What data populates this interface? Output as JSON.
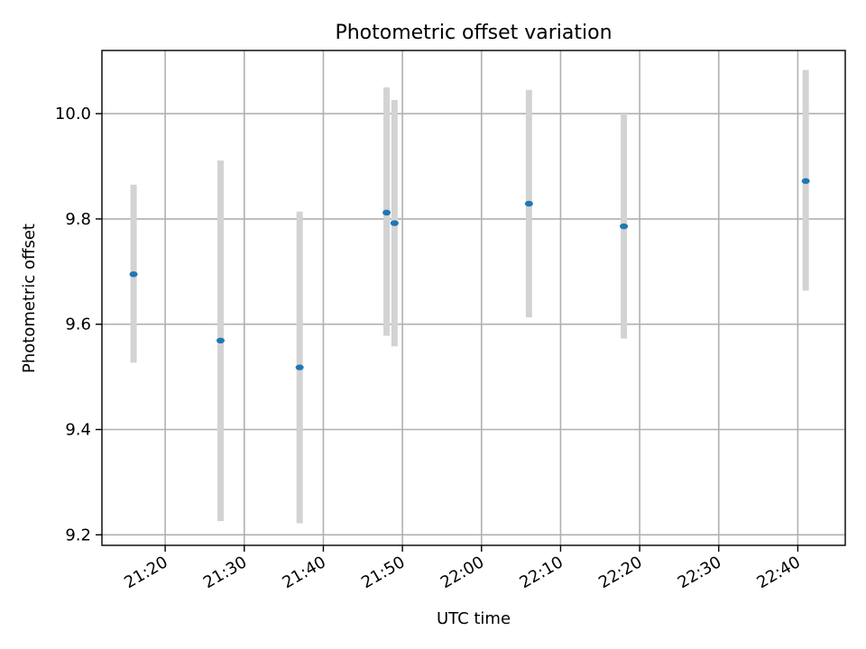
{
  "chart_data": {
    "type": "scatter",
    "title": "Photometric offset variation",
    "xlabel": "UTC time",
    "ylabel": "Photometric offset",
    "x_ticks": [
      "21:20",
      "21:30",
      "21:40",
      "21:50",
      "22:00",
      "22:10",
      "22:20",
      "22:30",
      "22:40"
    ],
    "y_ticks": [
      "9.2",
      "9.4",
      "9.6",
      "9.8",
      "10.0"
    ],
    "xlim": [
      "21:12",
      "22:46"
    ],
    "ylim": [
      9.18,
      10.12
    ],
    "grid": true,
    "marker_color": "#1f77b4",
    "errorbar_color": "#d3d3d3",
    "points": [
      {
        "x": "21:16",
        "y": 9.695,
        "ylow": 9.527,
        "yhigh": 9.865
      },
      {
        "x": "21:27",
        "y": 9.569,
        "ylow": 9.226,
        "yhigh": 9.911
      },
      {
        "x": "21:37",
        "y": 9.518,
        "ylow": 9.222,
        "yhigh": 9.814
      },
      {
        "x": "21:48",
        "y": 9.812,
        "ylow": 9.578,
        "yhigh": 10.05
      },
      {
        "x": "21:49",
        "y": 9.792,
        "ylow": 9.558,
        "yhigh": 10.026
      },
      {
        "x": "22:06",
        "y": 9.829,
        "ylow": 9.613,
        "yhigh": 10.045
      },
      {
        "x": "22:18",
        "y": 9.786,
        "ylow": 9.573,
        "yhigh": 10.0
      },
      {
        "x": "22:41",
        "y": 9.872,
        "ylow": 9.664,
        "yhigh": 10.083
      }
    ]
  }
}
